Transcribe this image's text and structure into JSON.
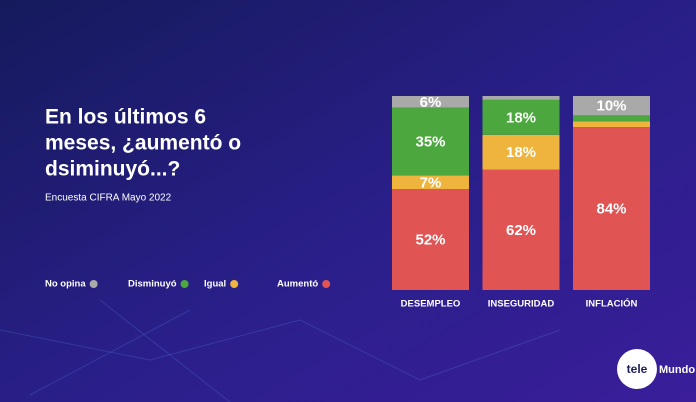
{
  "chart_data": {
    "type": "stacked_bar",
    "title_lines": [
      "En los últimos 6",
      "meses, ¿aumentó o",
      "dsiminuyó...?"
    ],
    "subtitle": "Encuesta CIFRA Mayo 2022",
    "categories": [
      "DESEMPLEO",
      "INSEGURIDAD",
      "INFLACIÓN"
    ],
    "ylim": [
      0,
      100
    ],
    "series": [
      {
        "name": "No opina",
        "color": "#a9a9a9",
        "values": [
          6,
          2,
          10
        ],
        "value_labels": [
          "6%",
          null,
          "10%"
        ]
      },
      {
        "name": "Disminuyó",
        "color": "#4ca83e",
        "values": [
          35,
          18,
          3
        ],
        "value_labels": [
          "35%",
          "18%",
          null
        ]
      },
      {
        "name": "Igual",
        "color": "#efb43d",
        "values": [
          7,
          18,
          3
        ],
        "value_labels": [
          "7%",
          "18%",
          null
        ]
      },
      {
        "name": "Aumentó",
        "color": "#e05454",
        "values": [
          52,
          62,
          84
        ],
        "value_labels": [
          "52%",
          "62%",
          "84%"
        ]
      }
    ],
    "logo": [
      "tele",
      "Mundo"
    ]
  }
}
